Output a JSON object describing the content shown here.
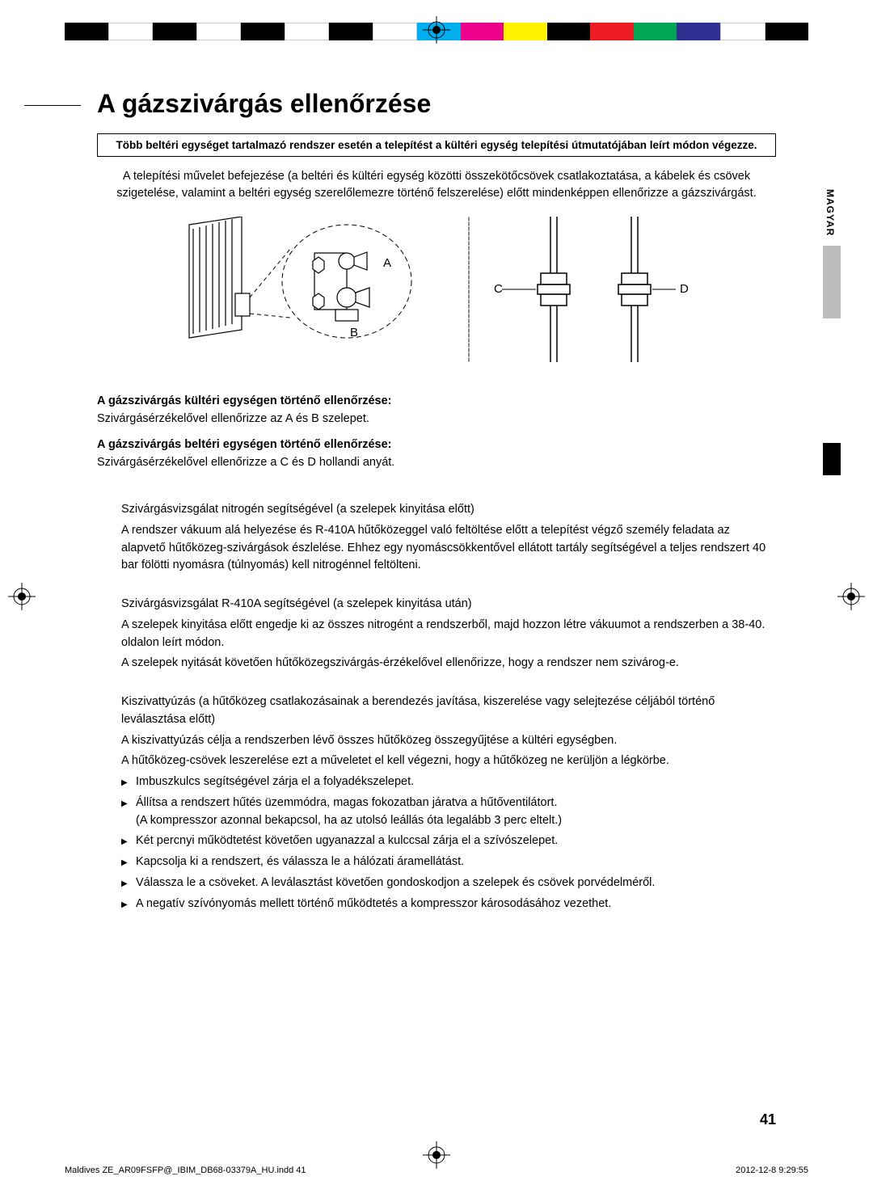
{
  "color_bar": [
    "#000000",
    "#ffffff",
    "#000000",
    "#ffffff",
    "#000000",
    "#ffffff",
    "#000000",
    "#ffffff",
    "#00aeef",
    "#ec008c",
    "#fff200",
    "#000000",
    "#ed1c24",
    "#00a651",
    "#2e3192",
    "#ffffff",
    "#000000"
  ],
  "title": "A gázszivárgás ellenőrzése",
  "boxed_note": "Több beltéri egységet tartalmazó rendszer esetén a telepítést a kültéri egység telepítési útmutatójában leírt módon végezze.",
  "intro": "A telepítési művelet befejezése (a beltéri és kültéri egység közötti összekötőcsövek csatlakoztatása, a kábelek és csövek szigetelése, valamint a beltéri egység szerelőlemezre történő felszerelése) előtt mindenképpen ellenőrizze a gázszivárgást.",
  "side_label": "MAGYAR",
  "diagram": {
    "labels": {
      "a": "A",
      "b": "B",
      "c": "C",
      "d": "D"
    }
  },
  "sec1_heading": "A gázszivárgás kültéri egységen történő ellenőrzése:",
  "sec1_text": "Szivárgásérzékelővel ellenőrizze az A és B szelepet.",
  "sec2_heading": "A gázszivárgás beltéri egységen történő ellenőrzése:",
  "sec2_text": "Szivárgásérzékelővel ellenőrizze a C és D hollandi anyát.",
  "body": {
    "p1": "Szivárgásvizsgálat nitrogén segítségével (a szelepek kinyitása előtt)",
    "p2": "A rendszer vákuum alá helyezése és R-410A hűtőközeggel való feltöltése előtt a telepítést végző személy feladata az alapvető hűtőközeg-szivárgások észlelése. Ehhez egy nyomáscsökkentővel ellátott tartály segítségével a teljes rendszert 40 bar fölötti nyomásra (túlnyomás) kell nitrogénnel feltölteni.",
    "p3": "Szivárgásvizsgálat R-410A segítségével (a szelepek kinyitása után)",
    "p4": "A szelepek kinyitása előtt engedje ki az összes nitrogént a rendszerből, majd hozzon létre vákuumot a rendszerben a 38-40. oldalon leírt módon.",
    "p5": "A szelepek nyitását követően hűtőközegszivárgás-érzékelővel ellenőrizze, hogy a rendszer nem szivárog-e.",
    "p6": "Kiszivattyúzás (a hűtőközeg csatlakozásainak a berendezés javítása, kiszerelése vagy selejtezése céljából történő leválasztása előtt)",
    "p7": "A kiszivattyúzás célja a rendszerben lévő összes hűtőközeg összegyűjtése a kültéri egységben.",
    "p8": "A hűtőközeg-csövek leszerelése ezt a műveletet el kell végezni, hogy a hűtőközeg ne kerüljön a légkörbe.",
    "bullets": [
      {
        "text": "Imbuszkulcs segítségével zárja el a folyadékszelepet."
      },
      {
        "text": "Állítsa a rendszert hűtés üzemmódra, magas fokozatban járatva a hűtőventilátort.",
        "sub": "(A kompresszor azonnal bekapcsol, ha az utolsó leállás óta legalább 3 perc eltelt.)"
      },
      {
        "text": "Két percnyi működtetést követően ugyanazzal a kulccsal zárja el a szívószelepet."
      },
      {
        "text": "Kapcsolja ki a rendszert, és válassza le a hálózati áramellátást."
      },
      {
        "text": "Válassza le a csöveket. A leválasztást követően gondoskodjon a szelepek és csövek porvédelméről."
      },
      {
        "text": "A negatív szívónyomás mellett történő működtetés a kompresszor károsodásához vezethet."
      }
    ]
  },
  "page_number": "41",
  "footer_left": "Maldives ZE_AR09FSFP@_IBIM_DB68-03379A_HU.indd   41",
  "footer_right": "2012-12-8   9:29:55"
}
